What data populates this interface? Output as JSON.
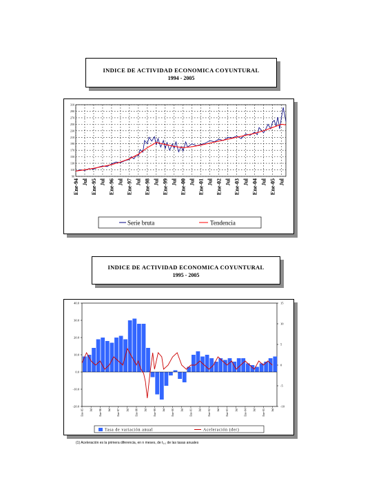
{
  "chart1": {
    "title": "INDICE DE ACTIVIDAD ECONOMICA COYUNTURAL",
    "subtitle": "1994 - 2005"
  },
  "chart2": {
    "title": "INDICE DE ACTIVIDAD ECONOMICA COYUNTURAL",
    "subtitle": "1995 - 2005"
  },
  "footnote": "(1) Aceleración es la primera diferencia, en n meses, de t₁,₁ de las tasas anuales",
  "chart_data": [
    {
      "type": "line",
      "ylim": [
        90,
        310
      ],
      "y_ticks": [
        "90",
        "110",
        "130",
        "150",
        "170",
        "190",
        "210",
        "230",
        "250",
        "270",
        "290",
        "310"
      ],
      "x_ticks": [
        "Ene-94",
        "Jul",
        "Ene-95",
        "Jul",
        "Ene-96",
        "Jul",
        "Ene-97",
        "Jul",
        "Ene-98",
        "Jul",
        "Ene-99",
        "Jul",
        "Ene-00",
        "Jul",
        "Ene-01",
        "Jul",
        "Ene-02",
        "Jul",
        "Ene-03",
        "Jul",
        "Ene-04",
        "Jul",
        "Ene-05",
        "Jul"
      ],
      "x_range": [
        1994.0,
        2005.75
      ],
      "grid": true,
      "legend_position": "bottom",
      "series": [
        {
          "name": "Serie bruta",
          "color": "#000080",
          "x": [
            1994.0,
            1994.25,
            1994.5,
            1994.75,
            1995.0,
            1995.25,
            1995.5,
            1995.75,
            1996.0,
            1996.25,
            1996.5,
            1996.75,
            1997.0,
            1997.1,
            1997.25,
            1997.4,
            1997.5,
            1997.6,
            1997.75,
            1997.85,
            1998.0,
            1998.1,
            1998.25,
            1998.4,
            1998.5,
            1998.6,
            1998.75,
            1998.9,
            1999.0,
            1999.1,
            1999.25,
            1999.4,
            1999.5,
            1999.6,
            1999.75,
            1999.9,
            2000.0,
            2000.15,
            2000.25,
            2000.5,
            2000.75,
            2001.0,
            2001.25,
            2001.5,
            2001.75,
            2002.0,
            2002.25,
            2002.5,
            2002.75,
            2003.0,
            2003.25,
            2003.5,
            2003.75,
            2004.0,
            2004.15,
            2004.25,
            2004.5,
            2004.6,
            2004.75,
            2004.9,
            2005.0,
            2005.1,
            2005.2,
            2005.3,
            2005.4,
            2005.5,
            2005.6,
            2005.75
          ],
          "y": [
            106,
            110,
            108,
            114,
            112,
            118,
            122,
            120,
            128,
            134,
            132,
            138,
            142,
            150,
            144,
            156,
            152,
            172,
            164,
            200,
            190,
            210,
            198,
            212,
            186,
            206,
            180,
            200,
            175,
            194,
            170,
            190,
            176,
            196,
            165,
            182,
            168,
            196,
            180,
            190,
            184,
            188,
            192,
            200,
            196,
            204,
            200,
            210,
            208,
            214,
            206,
            220,
            216,
            226,
            218,
            240,
            224,
            232,
            250,
            236,
            256,
            262,
            244,
            272,
            236,
            270,
            302,
            258
          ]
        },
        {
          "name": "Tendencia",
          "color": "#ff0000",
          "x": [
            1994.0,
            1994.5,
            1995.0,
            1995.5,
            1996.0,
            1996.5,
            1997.0,
            1997.5,
            1998.0,
            1998.5,
            1999.0,
            1999.5,
            2000.0,
            2000.5,
            2001.0,
            2001.5,
            2002.0,
            2002.5,
            2003.0,
            2003.5,
            2004.0,
            2004.5,
            2005.0,
            2005.5,
            2005.75
          ],
          "y": [
            106,
            110,
            115,
            120,
            126,
            134,
            144,
            158,
            178,
            194,
            188,
            182,
            178,
            181,
            186,
            192,
            198,
            204,
            210,
            216,
            222,
            230,
            240,
            250,
            248
          ]
        }
      ]
    },
    {
      "type": "bar",
      "ylim": [
        -20,
        40
      ],
      "y2lim": [
        -10,
        15
      ],
      "y_ticks": [
        "40.0",
        "30.0",
        "20.0",
        "10.0",
        "0.0",
        "-10.0",
        "-20.0"
      ],
      "y2_ticks": [
        "15",
        "10",
        "5",
        "0",
        "-5",
        "-10"
      ],
      "x_ticks": [
        "Ene-95",
        "Jul",
        "Ene-96",
        "Jul",
        "Ene-97",
        "Jul",
        "Ene-98",
        "Jul",
        "Ene-99",
        "Jul",
        "Ene-00",
        "Jul",
        "Ene-01",
        "Jul",
        "Ene-02",
        "Jul",
        "Ene-03",
        "Jul",
        "Ene-04",
        "Jul",
        "Ene-05",
        "Jul"
      ],
      "x_range": [
        1995.0,
        2005.75
      ],
      "grid": false,
      "legend_position": "bottom",
      "series": [
        {
          "name": "Tasa de variación anual",
          "type": "bar",
          "color": "#3366ff",
          "x": [
            1995.0,
            1995.25,
            1995.5,
            1995.75,
            1996.0,
            1996.25,
            1996.5,
            1996.75,
            1997.0,
            1997.25,
            1997.5,
            1997.75,
            1998.0,
            1998.25,
            1998.5,
            1998.75,
            1999.0,
            1999.25,
            1999.5,
            1999.75,
            2000.0,
            2000.25,
            2000.5,
            2000.75,
            2001.0,
            2001.25,
            2001.5,
            2001.75,
            2002.0,
            2002.25,
            2002.5,
            2002.75,
            2003.0,
            2003.25,
            2003.5,
            2003.75,
            2004.0,
            2004.25,
            2004.5,
            2004.75,
            2005.0,
            2005.25,
            2005.5
          ],
          "y": [
            9,
            10,
            14,
            19,
            20,
            18,
            17,
            20,
            21,
            19,
            30,
            31,
            28,
            28,
            14,
            -3,
            -13,
            -16,
            -8,
            -2,
            1,
            -4,
            -6,
            3,
            10,
            12,
            9,
            10,
            8,
            6,
            8,
            7,
            8,
            6,
            8,
            8,
            5,
            4,
            3,
            5,
            6,
            8,
            9
          ]
        },
        {
          "name": "Aceleración (der)",
          "type": "line",
          "axis": "right",
          "color": "#cc0000",
          "x": [
            1995.0,
            1995.25,
            1995.5,
            1995.75,
            1996.0,
            1996.25,
            1996.5,
            1996.75,
            1997.0,
            1997.25,
            1997.5,
            1997.75,
            1998.0,
            1998.1,
            1998.25,
            1998.4,
            1998.5,
            1998.6,
            1998.75,
            1998.9,
            1999.0,
            1999.2,
            1999.4,
            1999.5,
            1999.75,
            2000.0,
            2000.25,
            2000.5,
            2000.75,
            2001.0,
            2001.25,
            2001.5,
            2001.75,
            2002.0,
            2002.25,
            2002.5,
            2002.75,
            2003.0,
            2003.25,
            2003.5,
            2003.75,
            2004.0,
            2004.25,
            2004.5,
            2004.75,
            2005.0,
            2005.25,
            2005.5
          ],
          "y": [
            0.5,
            3,
            1,
            0,
            1,
            -1,
            0,
            2,
            1,
            0,
            4,
            2,
            0,
            1,
            -1,
            -2,
            -4,
            -8,
            -2,
            3,
            -1,
            3,
            2,
            -1,
            0,
            2,
            3,
            0,
            -1,
            0,
            0,
            1,
            0,
            -1,
            0,
            2,
            1,
            0,
            1,
            -1,
            0,
            1,
            0,
            -1,
            1,
            0,
            1,
            0
          ]
        }
      ]
    }
  ]
}
